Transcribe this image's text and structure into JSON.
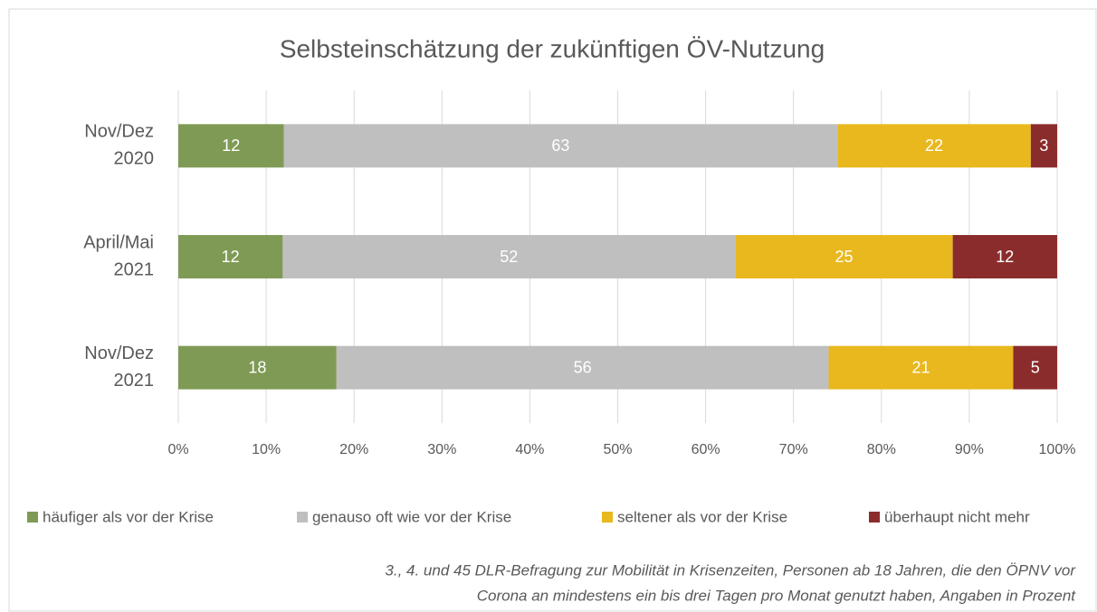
{
  "chart_data": {
    "type": "bar",
    "orientation": "horizontal",
    "stacked": "percent",
    "title": "Selbsteinschätzung der zukünftigen ÖV-Nutzung",
    "categories": [
      [
        "Nov/Dez",
        "2020"
      ],
      [
        "April/Mai",
        "2021"
      ],
      [
        "Nov/Dez",
        "2021"
      ]
    ],
    "series": [
      {
        "name": "häufiger als vor der Krise",
        "color": "#7f9a55",
        "values": [
          12,
          12,
          18
        ]
      },
      {
        "name": "genauso oft wie vor der Krise",
        "color": "#bfbfbf",
        "values": [
          63,
          52,
          56
        ]
      },
      {
        "name": "seltener als vor der Krise",
        "color": "#e8b81e",
        "values": [
          22,
          25,
          21
        ]
      },
      {
        "name": "überhaupt nicht mehr",
        "color": "#8b2c2c",
        "values": [
          3,
          12,
          5
        ]
      }
    ],
    "xlim": [
      0,
      100
    ],
    "xticks": [
      {
        "value": 0,
        "label": "0%"
      },
      {
        "value": 10,
        "label": "10%"
      },
      {
        "value": 20,
        "label": "20%"
      },
      {
        "value": 30,
        "label": "30%"
      },
      {
        "value": 40,
        "label": "40%"
      },
      {
        "value": 50,
        "label": "50%"
      },
      {
        "value": 60,
        "label": "60%"
      },
      {
        "value": 70,
        "label": "70%"
      },
      {
        "value": 80,
        "label": "80%"
      },
      {
        "value": 90,
        "label": "90%"
      },
      {
        "value": 100,
        "label": "100%"
      }
    ],
    "grid": true,
    "legend": "bottom",
    "footnote": [
      "3., 4. und 45 DLR-Befragung zur Mobilität in Krisenzeiten, Personen ab 18 Jahren, die den ÖPNV vor",
      "Corona an mindestens ein bis drei Tagen pro Monat genutzt haben, Angaben in Prozent"
    ]
  }
}
